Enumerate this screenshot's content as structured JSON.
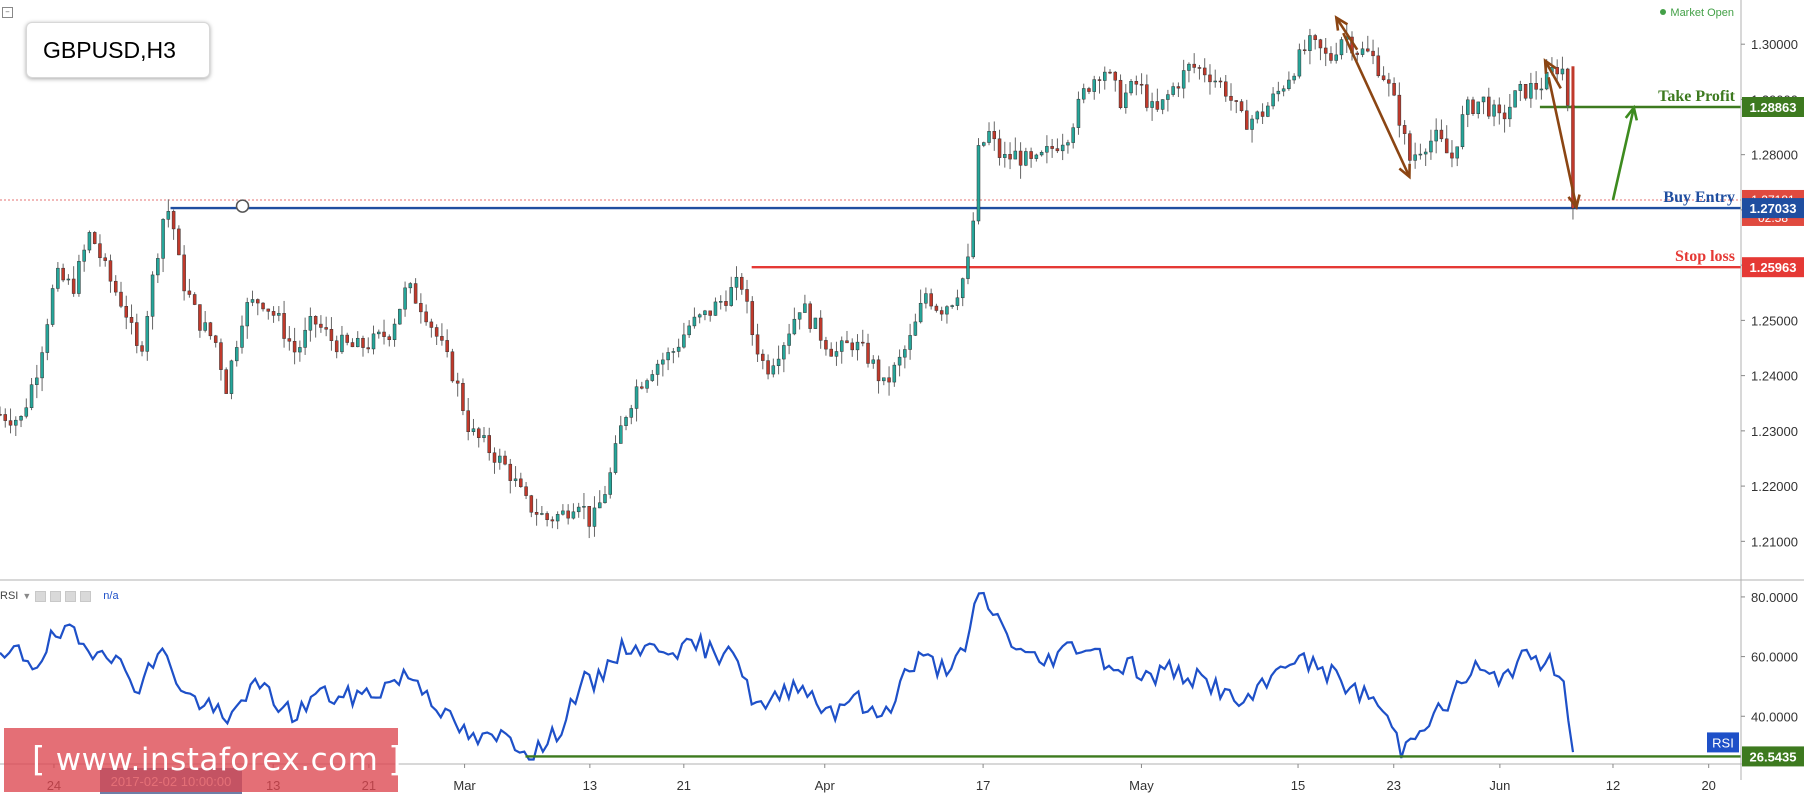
{
  "header": {
    "symbol_label": "GBPUSD,H3",
    "market_status": "Market Open"
  },
  "rsi_panel": {
    "indicator_label": "RSI",
    "value_label": "n/a",
    "badge": "RSI"
  },
  "watermark": {
    "text": "www.instaforex.com"
  },
  "colors": {
    "bull": "#26a69a",
    "bear": "#c0392b",
    "take_profit": "#3d7a1f",
    "buy_entry": "#1f4ea0",
    "stop_loss": "#e53935",
    "rsi_line": "#1e50c8",
    "arrow_brown": "#8b4513",
    "arrow_green": "#3d8b1f"
  },
  "chart_data": [
    {
      "type": "candlestick",
      "title": "GBPUSD,H3",
      "y_range": [
        1.203,
        1.308
      ],
      "y_ticks": [
        1.21,
        1.22,
        1.23,
        1.24,
        1.25,
        1.26,
        1.27,
        1.28,
        1.29,
        1.3
      ],
      "y_tick_labels": [
        "1.21000",
        "1.22000",
        "1.23000",
        "1.24000",
        "1.25000",
        "1.26000",
        "1.27000",
        "1.28000",
        "1.29000",
        "1.30000"
      ],
      "x_ticks": [
        {
          "label": "24",
          "pos": 0.031
        },
        {
          "label": "13",
          "pos": 0.157
        },
        {
          "label": "21",
          "pos": 0.212
        },
        {
          "label": "Mar",
          "pos": 0.267
        },
        {
          "label": "13",
          "pos": 0.339
        },
        {
          "label": "21",
          "pos": 0.393
        },
        {
          "label": "Apr",
          "pos": 0.474
        },
        {
          "label": "17",
          "pos": 0.565
        },
        {
          "label": "May",
          "pos": 0.656
        },
        {
          "label": "15",
          "pos": 0.746
        },
        {
          "label": "23",
          "pos": 0.801
        },
        {
          "label": "Jun",
          "pos": 0.862
        },
        {
          "label": "12",
          "pos": 0.927
        },
        {
          "label": "20",
          "pos": 0.982
        }
      ],
      "highlighted_time": "2017-02-02 10:00:00",
      "price_path": [
        [
          0.0,
          1.233
        ],
        [
          0.012,
          1.232
        ],
        [
          0.022,
          1.242
        ],
        [
          0.032,
          1.258
        ],
        [
          0.042,
          1.256
        ],
        [
          0.052,
          1.266
        ],
        [
          0.062,
          1.258
        ],
        [
          0.072,
          1.252
        ],
        [
          0.08,
          1.243
        ],
        [
          0.088,
          1.258
        ],
        [
          0.094,
          1.269
        ],
        [
          0.098,
          1.2703
        ],
        [
          0.104,
          1.258
        ],
        [
          0.114,
          1.25
        ],
        [
          0.124,
          1.246
        ],
        [
          0.13,
          1.238
        ],
        [
          0.14,
          1.252
        ],
        [
          0.15,
          1.254
        ],
        [
          0.16,
          1.25
        ],
        [
          0.17,
          1.244
        ],
        [
          0.18,
          1.25
        ],
        [
          0.192,
          1.246
        ],
        [
          0.204,
          1.245
        ],
        [
          0.214,
          1.246
        ],
        [
          0.224,
          1.248
        ],
        [
          0.234,
          1.256
        ],
        [
          0.244,
          1.252
        ],
        [
          0.254,
          1.245
        ],
        [
          0.262,
          1.239
        ],
        [
          0.27,
          1.23
        ],
        [
          0.28,
          1.227
        ],
        [
          0.292,
          1.223
        ],
        [
          0.302,
          1.217
        ],
        [
          0.314,
          1.214
        ],
        [
          0.324,
          1.215
        ],
        [
          0.332,
          1.218
        ],
        [
          0.34,
          1.213
        ],
        [
          0.35,
          1.221
        ],
        [
          0.358,
          1.232
        ],
        [
          0.366,
          1.238
        ],
        [
          0.376,
          1.242
        ],
        [
          0.386,
          1.244
        ],
        [
          0.396,
          1.249
        ],
        [
          0.406,
          1.251
        ],
        [
          0.416,
          1.254
        ],
        [
          0.426,
          1.257
        ],
        [
          0.432,
          1.248
        ],
        [
          0.44,
          1.241
        ],
        [
          0.45,
          1.246
        ],
        [
          0.46,
          1.253
        ],
        [
          0.47,
          1.248
        ],
        [
          0.48,
          1.244
        ],
        [
          0.49,
          1.246
        ],
        [
          0.5,
          1.243
        ],
        [
          0.508,
          1.238
        ],
        [
          0.516,
          1.242
        ],
        [
          0.524,
          1.247
        ],
        [
          0.532,
          1.255
        ],
        [
          0.54,
          1.252
        ],
        [
          0.548,
          1.254
        ],
        [
          0.554,
          1.258
        ],
        [
          0.558,
          1.262
        ],
        [
          0.562,
          1.28
        ],
        [
          0.568,
          1.284
        ],
        [
          0.576,
          1.279
        ],
        [
          0.584,
          1.28
        ],
        [
          0.594,
          1.278
        ],
        [
          0.604,
          1.281
        ],
        [
          0.614,
          1.284
        ],
        [
          0.624,
          1.292
        ],
        [
          0.634,
          1.296
        ],
        [
          0.644,
          1.29
        ],
        [
          0.654,
          1.293
        ],
        [
          0.664,
          1.287
        ],
        [
          0.674,
          1.292
        ],
        [
          0.684,
          1.296
        ],
        [
          0.694,
          1.295
        ],
        [
          0.704,
          1.292
        ],
        [
          0.714,
          1.286
        ],
        [
          0.724,
          1.287
        ],
        [
          0.734,
          1.291
        ],
        [
          0.744,
          1.296
        ],
        [
          0.752,
          1.3
        ],
        [
          0.758,
          1.299
        ],
        [
          0.764,
          1.297
        ],
        [
          0.772,
          1.302
        ],
        [
          0.78,
          1.299
        ],
        [
          0.788,
          1.298
        ],
        [
          0.796,
          1.294
        ],
        [
          0.804,
          1.287
        ],
        [
          0.81,
          1.279
        ],
        [
          0.818,
          1.282
        ],
        [
          0.826,
          1.283
        ],
        [
          0.834,
          1.279
        ],
        [
          0.842,
          1.288
        ],
        [
          0.852,
          1.29
        ],
        [
          0.862,
          1.286
        ],
        [
          0.872,
          1.291
        ],
        [
          0.88,
          1.292
        ],
        [
          0.888,
          1.293
        ],
        [
          0.894,
          1.296
        ],
        [
          0.9,
          1.295
        ],
        [
          0.904,
          1.272
        ]
      ],
      "levels": [
        {
          "name": "Take Profit",
          "value": 1.28863,
          "label": "1.28863",
          "color": "#3d7a1f",
          "start": 0.885
        },
        {
          "name": "Buy Entry",
          "value": 1.27033,
          "label": "1.27033",
          "color": "#1f4ea0",
          "start": 0.098
        },
        {
          "name": "Stop loss",
          "value": 1.25963,
          "label": "1.25963",
          "color": "#e53935",
          "start": 0.432
        }
      ],
      "current_price": {
        "value": 1.2718,
        "label": "1.27181",
        "countdown": "02:58"
      },
      "arrows": [
        {
          "from": [
            0.78,
            1.299
          ],
          "to": [
            0.768,
            1.3048
          ],
          "color": "#8b4513"
        },
        {
          "from": [
            0.772,
            1.302
          ],
          "to": [
            0.81,
            1.276
          ],
          "color": "#8b4513"
        },
        {
          "from": [
            0.897,
            1.292
          ],
          "to": [
            0.888,
            1.297
          ],
          "color": "#8b4513"
        },
        {
          "from": [
            0.89,
            1.294
          ],
          "to": [
            0.906,
            1.2705
          ],
          "color": "#8b4513"
        },
        {
          "from": [
            0.927,
            1.2718
          ],
          "to": [
            0.939,
            1.2885
          ],
          "color": "#3d8b1f"
        }
      ]
    },
    {
      "type": "line",
      "title": "RSI",
      "y_range": [
        24,
        85
      ],
      "y_ticks": [
        40,
        60,
        80
      ],
      "y_tick_labels": [
        "40.0000",
        "60.0000",
        "80.0000"
      ],
      "level_line": {
        "value": 26.5435,
        "label": "26.5435",
        "color": "#3d7a1f",
        "start": 0.302
      },
      "series": [
        {
          "values_path": [
            [
              0.0,
              58
            ],
            [
              0.01,
              62
            ],
            [
              0.02,
              57
            ],
            [
              0.03,
              66
            ],
            [
              0.04,
              68
            ],
            [
              0.05,
              62
            ],
            [
              0.06,
              64
            ],
            [
              0.07,
              56
            ],
            [
              0.08,
              50
            ],
            [
              0.088,
              58
            ],
            [
              0.096,
              62
            ],
            [
              0.104,
              48
            ],
            [
              0.114,
              45
            ],
            [
              0.124,
              42
            ],
            [
              0.13,
              36
            ],
            [
              0.14,
              48
            ],
            [
              0.15,
              50
            ],
            [
              0.16,
              44
            ],
            [
              0.17,
              40
            ],
            [
              0.182,
              48
            ],
            [
              0.194,
              46
            ],
            [
              0.206,
              47
            ],
            [
              0.216,
              48
            ],
            [
              0.226,
              52
            ],
            [
              0.236,
              54
            ],
            [
              0.246,
              48
            ],
            [
              0.256,
              40
            ],
            [
              0.264,
              36
            ],
            [
              0.272,
              32
            ],
            [
              0.282,
              32
            ],
            [
              0.292,
              34
            ],
            [
              0.302,
              28
            ],
            [
              0.314,
              30
            ],
            [
              0.324,
              38
            ],
            [
              0.334,
              52
            ],
            [
              0.342,
              50
            ],
            [
              0.352,
              60
            ],
            [
              0.362,
              64
            ],
            [
              0.372,
              62
            ],
            [
              0.382,
              64
            ],
            [
              0.392,
              62
            ],
            [
              0.402,
              64
            ],
            [
              0.412,
              60
            ],
            [
              0.42,
              66
            ],
            [
              0.43,
              48
            ],
            [
              0.44,
              42
            ],
            [
              0.45,
              48
            ],
            [
              0.46,
              52
            ],
            [
              0.47,
              44
            ],
            [
              0.48,
              42
            ],
            [
              0.49,
              48
            ],
            [
              0.5,
              40
            ],
            [
              0.51,
              42
            ],
            [
              0.52,
              54
            ],
            [
              0.53,
              60
            ],
            [
              0.54,
              56
            ],
            [
              0.548,
              58
            ],
            [
              0.556,
              62
            ],
            [
              0.562,
              82
            ],
            [
              0.57,
              76
            ],
            [
              0.58,
              66
            ],
            [
              0.59,
              60
            ],
            [
              0.6,
              58
            ],
            [
              0.61,
              62
            ],
            [
              0.62,
              64
            ],
            [
              0.63,
              62
            ],
            [
              0.64,
              56
            ],
            [
              0.65,
              58
            ],
            [
              0.66,
              52
            ],
            [
              0.67,
              56
            ],
            [
              0.68,
              54
            ],
            [
              0.69,
              52
            ],
            [
              0.7,
              50
            ],
            [
              0.71,
              44
            ],
            [
              0.72,
              46
            ],
            [
              0.73,
              52
            ],
            [
              0.74,
              60
            ],
            [
              0.75,
              58
            ],
            [
              0.76,
              56
            ],
            [
              0.77,
              52
            ],
            [
              0.78,
              48
            ],
            [
              0.79,
              46
            ],
            [
              0.8,
              36
            ],
            [
              0.806,
              28
            ],
            [
              0.814,
              36
            ],
            [
              0.822,
              40
            ],
            [
              0.83,
              42
            ],
            [
              0.838,
              50
            ],
            [
              0.848,
              56
            ],
            [
              0.858,
              52
            ],
            [
              0.868,
              56
            ],
            [
              0.878,
              60
            ],
            [
              0.888,
              58
            ],
            [
              0.898,
              56
            ],
            [
              0.904,
              28
            ]
          ]
        }
      ]
    }
  ]
}
